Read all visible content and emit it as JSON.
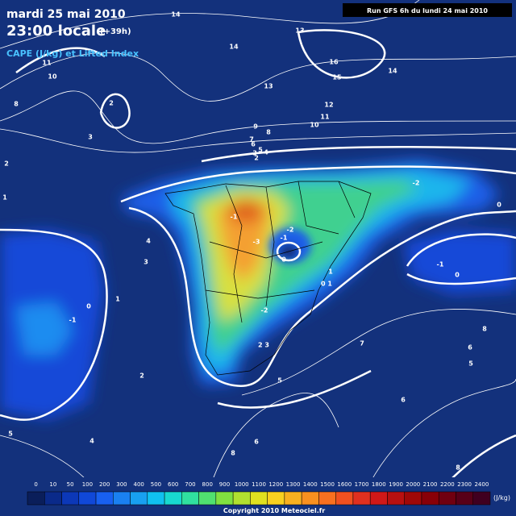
{
  "header": {
    "date": "mardi 25 mai 2010",
    "time": "23:00 locale",
    "offset": "(+39h)",
    "field": "CAPE (J/kg) et Lifted Index",
    "run": "Run GFS 6h du lundi 24 mai 2010"
  },
  "contour_labels": [
    "14",
    "13",
    "14",
    "16",
    "15",
    "14",
    "11",
    "10",
    "13",
    "12",
    "11",
    "10",
    "9",
    "8",
    "7",
    "6",
    "5",
    "4",
    "3",
    "2",
    "8",
    "2",
    "3",
    "2",
    "1",
    "-2",
    "0",
    "-1",
    "-3",
    "-2",
    "-1",
    "0",
    "4",
    "3",
    "1",
    "0 1",
    "-1",
    "0",
    "1",
    "0",
    "-1",
    "-2",
    "2 3",
    "7",
    "6",
    "8",
    "5",
    "5",
    "2",
    "6",
    "6",
    "8",
    "5",
    "4",
    "8"
  ],
  "legend": {
    "ticks": [
      0,
      10,
      50,
      100,
      200,
      300,
      400,
      500,
      600,
      700,
      800,
      900,
      1000,
      1100,
      1200,
      1300,
      1400,
      1500,
      1600,
      1700,
      1800,
      1900,
      2000,
      2100,
      2200,
      2300,
      2400
    ],
    "colors": [
      "#0a1e5a",
      "#0a2a8a",
      "#0c38b8",
      "#1048d8",
      "#1860f0",
      "#1a80f0",
      "#18a0f0",
      "#10c0f0",
      "#18d8d0",
      "#30e0a0",
      "#50e070",
      "#80e040",
      "#b0e030",
      "#e0e020",
      "#f8d020",
      "#f8b020",
      "#f89020",
      "#f87020",
      "#f05020",
      "#e03020",
      "#d01818",
      "#b81010",
      "#a00808",
      "#880008",
      "#700010",
      "#580018",
      "#400020"
    ],
    "unit": "(J/kg)"
  },
  "copyright": "Copyright 2010 Meteociel.fr"
}
